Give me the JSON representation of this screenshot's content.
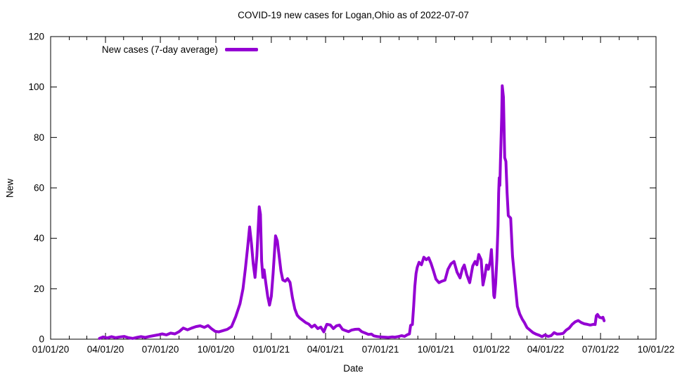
{
  "title": "COVID-19 new cases for Logan,Ohio as of 2022-07-07",
  "legend": {
    "label": "New cases (7-day average)"
  },
  "colors": {
    "line": "#9400d3",
    "axis": "#000000",
    "background": "#ffffff"
  },
  "chart_data": {
    "type": "line",
    "title": "COVID-19 new cases for Logan,Ohio as of 2022-07-07",
    "xlabel": "Date",
    "ylabel": "New",
    "ylim": [
      0,
      120
    ],
    "y_ticks": [
      0,
      20,
      40,
      60,
      80,
      100,
      120
    ],
    "x_range": [
      "2020-01-01",
      "2022-10-01"
    ],
    "x_tick_labels": [
      "01/01/20",
      "04/01/20",
      "07/01/20",
      "10/01/20",
      "01/01/21",
      "04/01/21",
      "07/01/21",
      "10/01/21",
      "01/01/22",
      "04/01/22",
      "07/01/22",
      "10/01/22"
    ],
    "minor_ticks": "monthly",
    "grid": false,
    "legend_position": "top-left-inside",
    "series": [
      {
        "name": "New cases (7-day average)",
        "color": "#9400d3",
        "points": [
          [
            "2020-03-22",
            0.3
          ],
          [
            "2020-03-28",
            0.9
          ],
          [
            "2020-04-04",
            0.5
          ],
          [
            "2020-04-11",
            1.0
          ],
          [
            "2020-04-18",
            0.6
          ],
          [
            "2020-04-25",
            0.9
          ],
          [
            "2020-05-02",
            1.1
          ],
          [
            "2020-05-09",
            0.6
          ],
          [
            "2020-05-16",
            0.3
          ],
          [
            "2020-05-23",
            0.7
          ],
          [
            "2020-05-30",
            1.0
          ],
          [
            "2020-06-06",
            0.7
          ],
          [
            "2020-06-13",
            1.1
          ],
          [
            "2020-06-20",
            1.4
          ],
          [
            "2020-06-27",
            1.7
          ],
          [
            "2020-07-04",
            2.1
          ],
          [
            "2020-07-11",
            1.7
          ],
          [
            "2020-07-18",
            2.4
          ],
          [
            "2020-07-25",
            2.1
          ],
          [
            "2020-08-01",
            3.0
          ],
          [
            "2020-08-08",
            4.4
          ],
          [
            "2020-08-15",
            3.7
          ],
          [
            "2020-08-22",
            4.4
          ],
          [
            "2020-08-29",
            5.0
          ],
          [
            "2020-09-05",
            5.3
          ],
          [
            "2020-09-12",
            4.7
          ],
          [
            "2020-09-18",
            5.4
          ],
          [
            "2020-09-24",
            4.1
          ],
          [
            "2020-09-30",
            3.1
          ],
          [
            "2020-10-06",
            2.9
          ],
          [
            "2020-10-13",
            3.4
          ],
          [
            "2020-10-20",
            3.9
          ],
          [
            "2020-10-27",
            5.0
          ],
          [
            "2020-11-03",
            9.0
          ],
          [
            "2020-11-10",
            14.0
          ],
          [
            "2020-11-15",
            20.0
          ],
          [
            "2020-11-19",
            28.0
          ],
          [
            "2020-11-23",
            37.0
          ],
          [
            "2020-11-26",
            44.5
          ],
          [
            "2020-11-29",
            38.0
          ],
          [
            "2020-12-02",
            30.0
          ],
          [
            "2020-12-05",
            24.5
          ],
          [
            "2020-12-08",
            33.0
          ],
          [
            "2020-12-12",
            52.5
          ],
          [
            "2020-12-14",
            49.5
          ],
          [
            "2020-12-16",
            31.0
          ],
          [
            "2020-12-18",
            24.5
          ],
          [
            "2020-12-20",
            27.5
          ],
          [
            "2020-12-23",
            22.0
          ],
          [
            "2020-12-26",
            17.0
          ],
          [
            "2020-12-29",
            13.5
          ],
          [
            "2021-01-01",
            17.0
          ],
          [
            "2021-01-04",
            26.0
          ],
          [
            "2021-01-08",
            41.0
          ],
          [
            "2021-01-11",
            39.0
          ],
          [
            "2021-01-14",
            33.0
          ],
          [
            "2021-01-17",
            27.0
          ],
          [
            "2021-01-20",
            23.5
          ],
          [
            "2021-01-24",
            23.0
          ],
          [
            "2021-01-28",
            24.0
          ],
          [
            "2021-02-01",
            22.5
          ],
          [
            "2021-02-05",
            16.5
          ],
          [
            "2021-02-09",
            12.0
          ],
          [
            "2021-02-13",
            9.5
          ],
          [
            "2021-02-17",
            8.4
          ],
          [
            "2021-02-22",
            7.5
          ],
          [
            "2021-02-27",
            6.6
          ],
          [
            "2021-03-04",
            6.0
          ],
          [
            "2021-03-09",
            4.8
          ],
          [
            "2021-03-14",
            5.6
          ],
          [
            "2021-03-19",
            4.2
          ],
          [
            "2021-03-24",
            4.8
          ],
          [
            "2021-03-29",
            2.9
          ],
          [
            "2021-04-03",
            5.9
          ],
          [
            "2021-04-09",
            5.6
          ],
          [
            "2021-04-14",
            4.2
          ],
          [
            "2021-04-19",
            5.3
          ],
          [
            "2021-04-24",
            5.6
          ],
          [
            "2021-04-29",
            3.9
          ],
          [
            "2021-05-04",
            3.4
          ],
          [
            "2021-05-09",
            3.0
          ],
          [
            "2021-05-14",
            3.6
          ],
          [
            "2021-05-20",
            3.9
          ],
          [
            "2021-05-26",
            4.0
          ],
          [
            "2021-05-31",
            3.0
          ],
          [
            "2021-06-06",
            2.4
          ],
          [
            "2021-06-11",
            1.9
          ],
          [
            "2021-06-16",
            2.0
          ],
          [
            "2021-06-20",
            1.3
          ],
          [
            "2021-06-25",
            1.1
          ],
          [
            "2021-07-01",
            0.9
          ],
          [
            "2021-07-08",
            0.8
          ],
          [
            "2021-07-14",
            0.7
          ],
          [
            "2021-07-20",
            0.9
          ],
          [
            "2021-07-25",
            0.8
          ],
          [
            "2021-07-30",
            1.0
          ],
          [
            "2021-08-05",
            1.4
          ],
          [
            "2021-08-10",
            1.1
          ],
          [
            "2021-08-14",
            1.7
          ],
          [
            "2021-08-18",
            2.1
          ],
          [
            "2021-08-20",
            5.5
          ],
          [
            "2021-08-23",
            5.8
          ],
          [
            "2021-08-25",
            13.0
          ],
          [
            "2021-08-27",
            21.0
          ],
          [
            "2021-08-29",
            26.0
          ],
          [
            "2021-08-31",
            28.5
          ],
          [
            "2021-09-03",
            30.5
          ],
          [
            "2021-09-07",
            29.5
          ],
          [
            "2021-09-11",
            32.5
          ],
          [
            "2021-09-15",
            31.5
          ],
          [
            "2021-09-19",
            32.3
          ],
          [
            "2021-09-23",
            30.0
          ],
          [
            "2021-09-27",
            27.0
          ],
          [
            "2021-10-01",
            23.8
          ],
          [
            "2021-10-06",
            22.4
          ],
          [
            "2021-10-11",
            23.0
          ],
          [
            "2021-10-16",
            23.4
          ],
          [
            "2021-10-21",
            27.7
          ],
          [
            "2021-10-26",
            29.9
          ],
          [
            "2021-10-31",
            30.8
          ],
          [
            "2021-11-05",
            26.6
          ],
          [
            "2021-11-10",
            24.3
          ],
          [
            "2021-11-14",
            28.0
          ],
          [
            "2021-11-17",
            29.4
          ],
          [
            "2021-11-21",
            25.7
          ],
          [
            "2021-11-26",
            22.4
          ],
          [
            "2021-12-01",
            29.0
          ],
          [
            "2021-12-05",
            30.8
          ],
          [
            "2021-12-08",
            29.5
          ],
          [
            "2021-12-11",
            33.6
          ],
          [
            "2021-12-15",
            31.5
          ],
          [
            "2021-12-18",
            21.5
          ],
          [
            "2021-12-21",
            25.0
          ],
          [
            "2021-12-24",
            29.4
          ],
          [
            "2021-12-27",
            27.7
          ],
          [
            "2021-12-30",
            31.0
          ],
          [
            "2022-01-01",
            35.5
          ],
          [
            "2022-01-03",
            27.0
          ],
          [
            "2022-01-05",
            17.3
          ],
          [
            "2022-01-06",
            16.5
          ],
          [
            "2022-01-08",
            22.0
          ],
          [
            "2022-01-10",
            31.3
          ],
          [
            "2022-01-12",
            45.0
          ],
          [
            "2022-01-13",
            58.0
          ],
          [
            "2022-01-14",
            64.0
          ],
          [
            "2022-01-15",
            61.0
          ],
          [
            "2022-01-16",
            70.0
          ],
          [
            "2022-01-18",
            88.0
          ],
          [
            "2022-01-19",
            100.5
          ],
          [
            "2022-01-21",
            96.0
          ],
          [
            "2022-01-23",
            72.0
          ],
          [
            "2022-01-25",
            70.5
          ],
          [
            "2022-01-27",
            58.0
          ],
          [
            "2022-01-29",
            49.0
          ],
          [
            "2022-02-02",
            48.0
          ],
          [
            "2022-02-05",
            33.0
          ],
          [
            "2022-02-09",
            23.0
          ],
          [
            "2022-02-13",
            13.0
          ],
          [
            "2022-02-17",
            10.0
          ],
          [
            "2022-02-21",
            8.0
          ],
          [
            "2022-02-25",
            6.5
          ],
          [
            "2022-03-01",
            4.6
          ],
          [
            "2022-03-06",
            3.6
          ],
          [
            "2022-03-11",
            2.6
          ],
          [
            "2022-03-16",
            2.0
          ],
          [
            "2022-03-21",
            1.6
          ],
          [
            "2022-03-26",
            1.0
          ],
          [
            "2022-03-31",
            1.7
          ],
          [
            "2022-04-05",
            1.1
          ],
          [
            "2022-04-10",
            1.4
          ],
          [
            "2022-04-15",
            2.6
          ],
          [
            "2022-04-20",
            2.0
          ],
          [
            "2022-04-25",
            2.1
          ],
          [
            "2022-04-30",
            2.3
          ],
          [
            "2022-05-05",
            3.6
          ],
          [
            "2022-05-10",
            4.4
          ],
          [
            "2022-05-15",
            5.9
          ],
          [
            "2022-05-20",
            6.9
          ],
          [
            "2022-05-25",
            7.4
          ],
          [
            "2022-05-30",
            6.6
          ],
          [
            "2022-06-04",
            6.1
          ],
          [
            "2022-06-09",
            5.9
          ],
          [
            "2022-06-14",
            5.6
          ],
          [
            "2022-06-19",
            5.9
          ],
          [
            "2022-06-22",
            5.8
          ],
          [
            "2022-06-24",
            9.3
          ],
          [
            "2022-06-26",
            9.8
          ],
          [
            "2022-06-29",
            8.7
          ],
          [
            "2022-07-03",
            8.4
          ],
          [
            "2022-07-05",
            8.7
          ],
          [
            "2022-07-07",
            7.3
          ]
        ]
      }
    ]
  }
}
